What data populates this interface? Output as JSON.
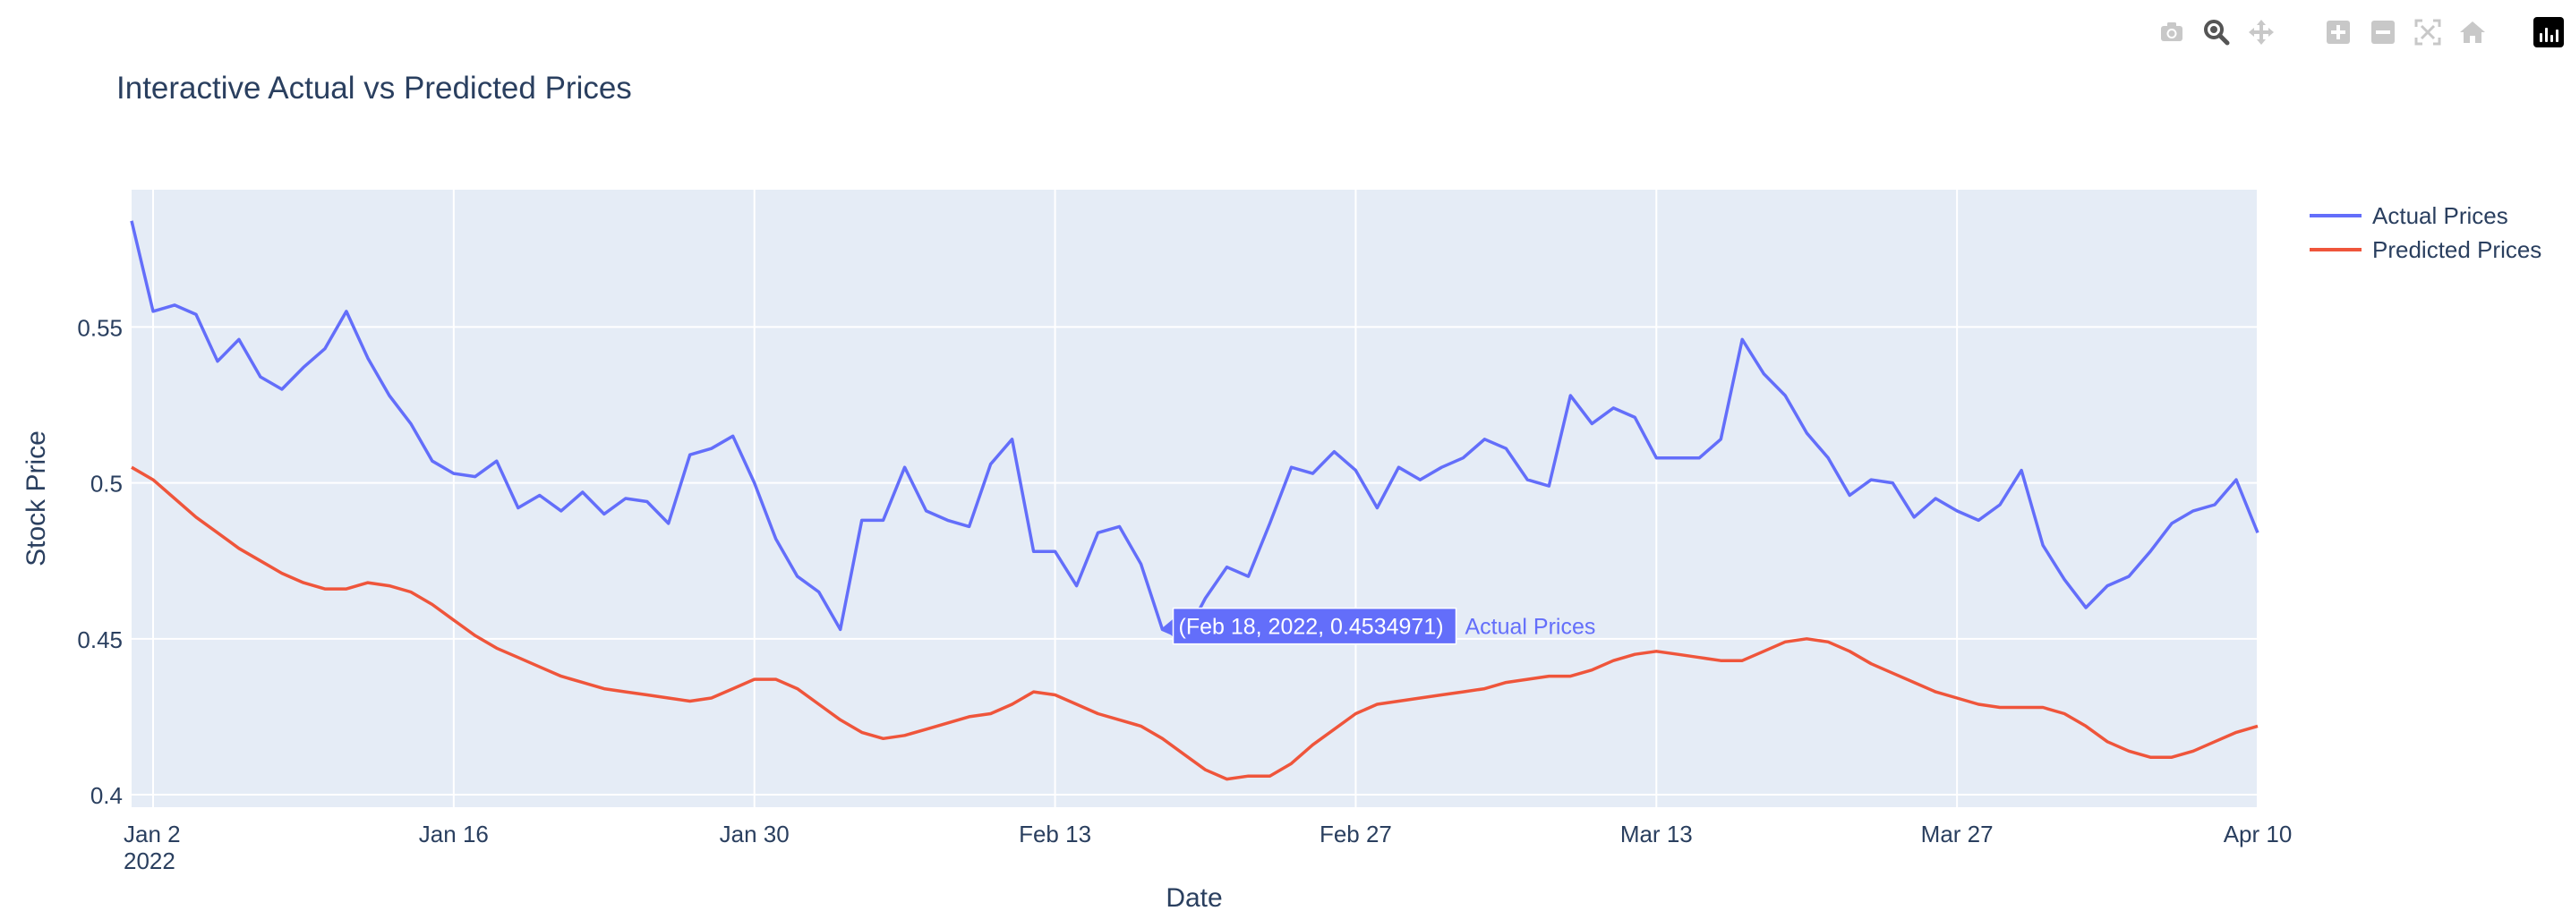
{
  "chart_data": {
    "type": "line",
    "title": "Interactive Actual vs Predicted Prices",
    "xlabel": "Date",
    "ylabel": "Stock Price",
    "x_start": "2022-01-01",
    "x_end": "2022-04-10",
    "xlim": [
      "2022-01-01",
      "2022-04-10"
    ],
    "ylim": [
      0.396,
      0.594
    ],
    "x_ticks": [
      {
        "date": "2022-01-02",
        "label": "Jan 2",
        "sublabel": "2022"
      },
      {
        "date": "2022-01-16",
        "label": "Jan 16"
      },
      {
        "date": "2022-01-30",
        "label": "Jan 30"
      },
      {
        "date": "2022-02-13",
        "label": "Feb 13"
      },
      {
        "date": "2022-02-27",
        "label": "Feb 27"
      },
      {
        "date": "2022-03-13",
        "label": "Mar 13"
      },
      {
        "date": "2022-03-27",
        "label": "Mar 27"
      },
      {
        "date": "2022-04-10",
        "label": "Apr 10"
      }
    ],
    "y_ticks": [
      {
        "value": 0.4,
        "label": "0.4"
      },
      {
        "value": 0.45,
        "label": "0.45"
      },
      {
        "value": 0.5,
        "label": "0.5"
      },
      {
        "value": 0.55,
        "label": "0.55"
      }
    ],
    "grid": true,
    "legend_position": "top-right",
    "series": [
      {
        "name": "Actual Prices",
        "color": "#636efa",
        "values": [
          0.584,
          0.555,
          0.557,
          0.554,
          0.539,
          0.546,
          0.534,
          0.53,
          0.537,
          0.543,
          0.555,
          0.54,
          0.528,
          0.519,
          0.507,
          0.503,
          0.502,
          0.507,
          0.492,
          0.496,
          0.491,
          0.497,
          0.49,
          0.495,
          0.494,
          0.487,
          0.509,
          0.511,
          0.515,
          0.5,
          0.482,
          0.47,
          0.465,
          0.453,
          0.488,
          0.488,
          0.505,
          0.491,
          0.488,
          0.486,
          0.506,
          0.514,
          0.478,
          0.478,
          0.467,
          0.484,
          0.486,
          0.474,
          0.453,
          0.45,
          0.463,
          0.473,
          0.47,
          0.487,
          0.505,
          0.503,
          0.51,
          0.504,
          0.492,
          0.505,
          0.501,
          0.505,
          0.508,
          0.514,
          0.511,
          0.501,
          0.499,
          0.528,
          0.519,
          0.524,
          0.521,
          0.508,
          0.508,
          0.508,
          0.514,
          0.546,
          0.535,
          0.528,
          0.516,
          0.508,
          0.496,
          0.501,
          0.5,
          0.489,
          0.495,
          0.491,
          0.488,
          0.493,
          0.504,
          0.48,
          0.469,
          0.46,
          0.467,
          0.47,
          0.478,
          0.487,
          0.491,
          0.493,
          0.501,
          0.484
        ]
      },
      {
        "name": "Predicted Prices",
        "color": "#ef553b",
        "values": [
          0.505,
          0.501,
          0.495,
          0.489,
          0.484,
          0.479,
          0.475,
          0.471,
          0.468,
          0.466,
          0.466,
          0.468,
          0.467,
          0.465,
          0.461,
          0.456,
          0.451,
          0.447,
          0.444,
          0.441,
          0.438,
          0.436,
          0.434,
          0.433,
          0.432,
          0.431,
          0.43,
          0.431,
          0.434,
          0.437,
          0.437,
          0.434,
          0.429,
          0.424,
          0.42,
          0.418,
          0.419,
          0.421,
          0.423,
          0.425,
          0.426,
          0.429,
          0.433,
          0.432,
          0.429,
          0.426,
          0.424,
          0.422,
          0.418,
          0.413,
          0.408,
          0.405,
          0.406,
          0.406,
          0.41,
          0.416,
          0.421,
          0.426,
          0.429,
          0.43,
          0.431,
          0.432,
          0.433,
          0.434,
          0.436,
          0.437,
          0.438,
          0.438,
          0.44,
          0.443,
          0.445,
          0.446,
          0.445,
          0.444,
          0.443,
          0.443,
          0.446,
          0.449,
          0.45,
          0.449,
          0.446,
          0.442,
          0.439,
          0.436,
          0.433,
          0.431,
          0.429,
          0.428,
          0.428,
          0.428,
          0.426,
          0.422,
          0.417,
          0.414,
          0.412,
          0.412,
          0.414,
          0.417,
          0.42,
          0.422
        ]
      }
    ],
    "hover": {
      "text": "(Feb 18, 2022, 0.4534971)",
      "series_label": "Actual Prices",
      "date": "2022-02-18",
      "value": 0.4534971
    }
  },
  "modebar": {
    "icons": [
      "camera-icon",
      "zoom-icon",
      "pan-icon",
      "zoom-in-icon",
      "zoom-out-icon",
      "autoscale-icon",
      "reset-axes-icon",
      "plotly-logo-icon"
    ]
  }
}
